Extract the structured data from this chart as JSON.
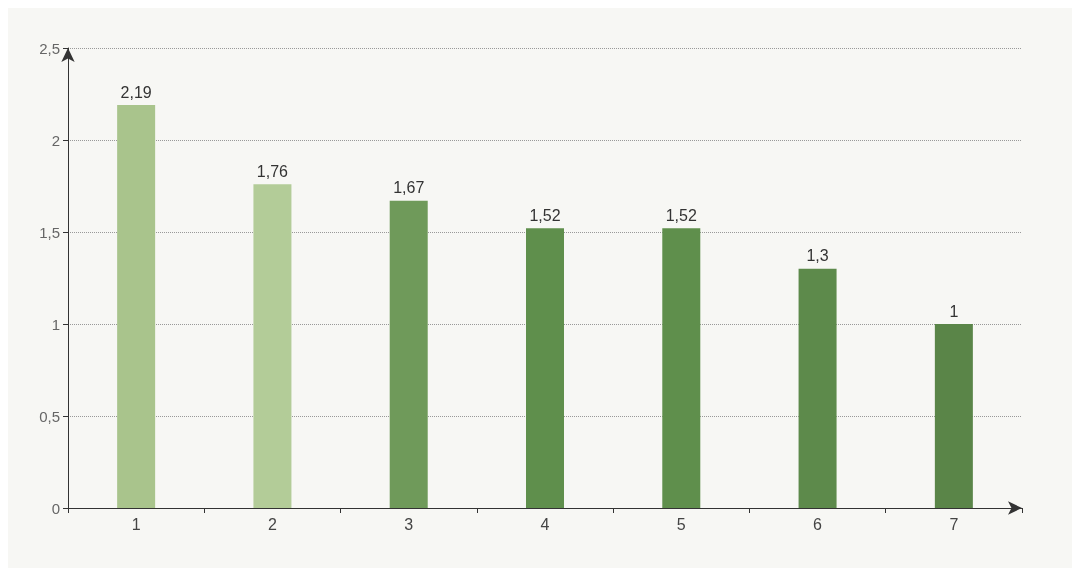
{
  "chart_data": {
    "type": "bar",
    "categories": [
      "1",
      "2",
      "3",
      "4",
      "5",
      "6",
      "7"
    ],
    "values": [
      2.19,
      1.76,
      1.67,
      1.52,
      1.52,
      1.3,
      1
    ],
    "value_labels": [
      "2,19",
      "1,76",
      "1,67",
      "1,52",
      "1,52",
      "1,3",
      "1"
    ],
    "colors": [
      "#a9c48c",
      "#b3cc98",
      "#6f9a5a",
      "#5f8f4c",
      "#5f8f4c",
      "#5d8a4b",
      "#5a8548"
    ],
    "ylim": [
      0,
      2.5
    ],
    "yticks": [
      0,
      {
        "value": 0.5,
        "label": "0,5"
      },
      1,
      {
        "value": 1.5,
        "label": "1,5"
      },
      2,
      {
        "value": 2.5,
        "label": "2,5"
      }
    ],
    "grid": "y"
  }
}
